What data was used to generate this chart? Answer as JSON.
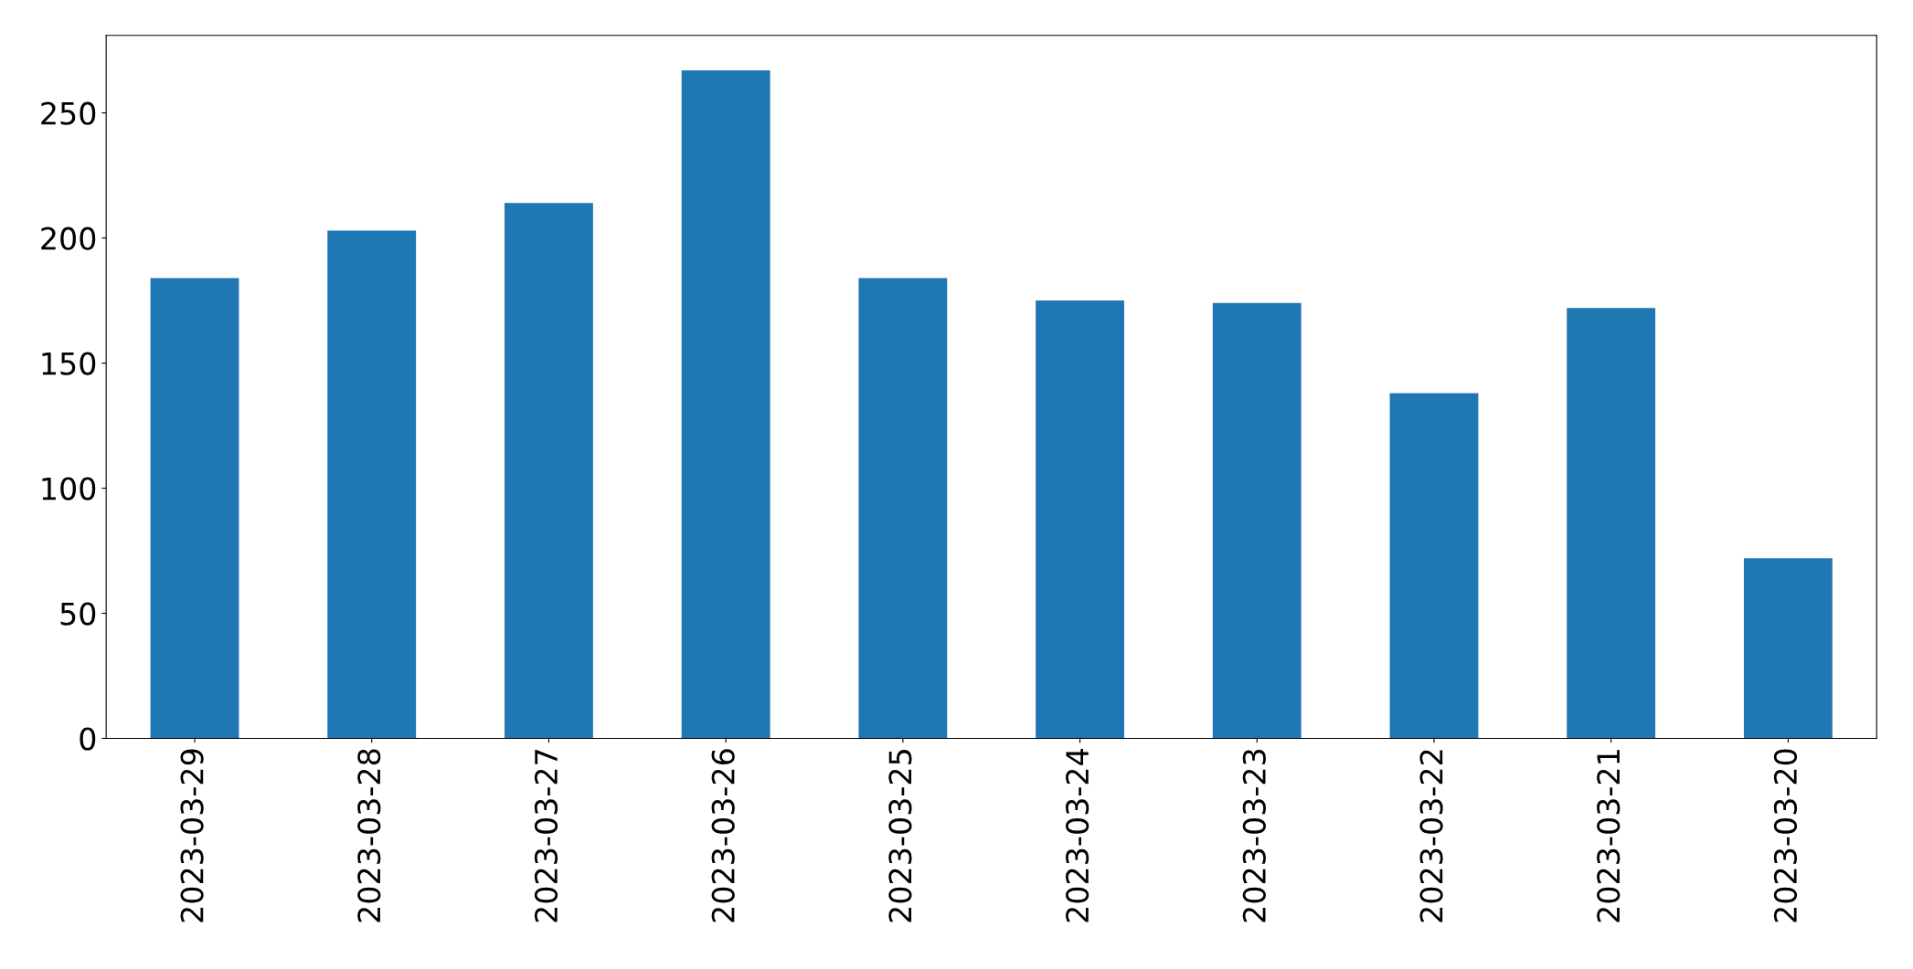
{
  "chart_data": {
    "type": "bar",
    "categories": [
      "2023-03-29",
      "2023-03-28",
      "2023-03-27",
      "2023-03-26",
      "2023-03-25",
      "2023-03-24",
      "2023-03-23",
      "2023-03-22",
      "2023-03-21",
      "2023-03-20"
    ],
    "values": [
      184,
      203,
      214,
      267,
      184,
      175,
      174,
      138,
      172,
      72
    ],
    "color": "#1f77b4",
    "ylim": [
      0,
      281
    ],
    "yticks": [
      0,
      50,
      100,
      150,
      200,
      250
    ],
    "grid": false
  }
}
